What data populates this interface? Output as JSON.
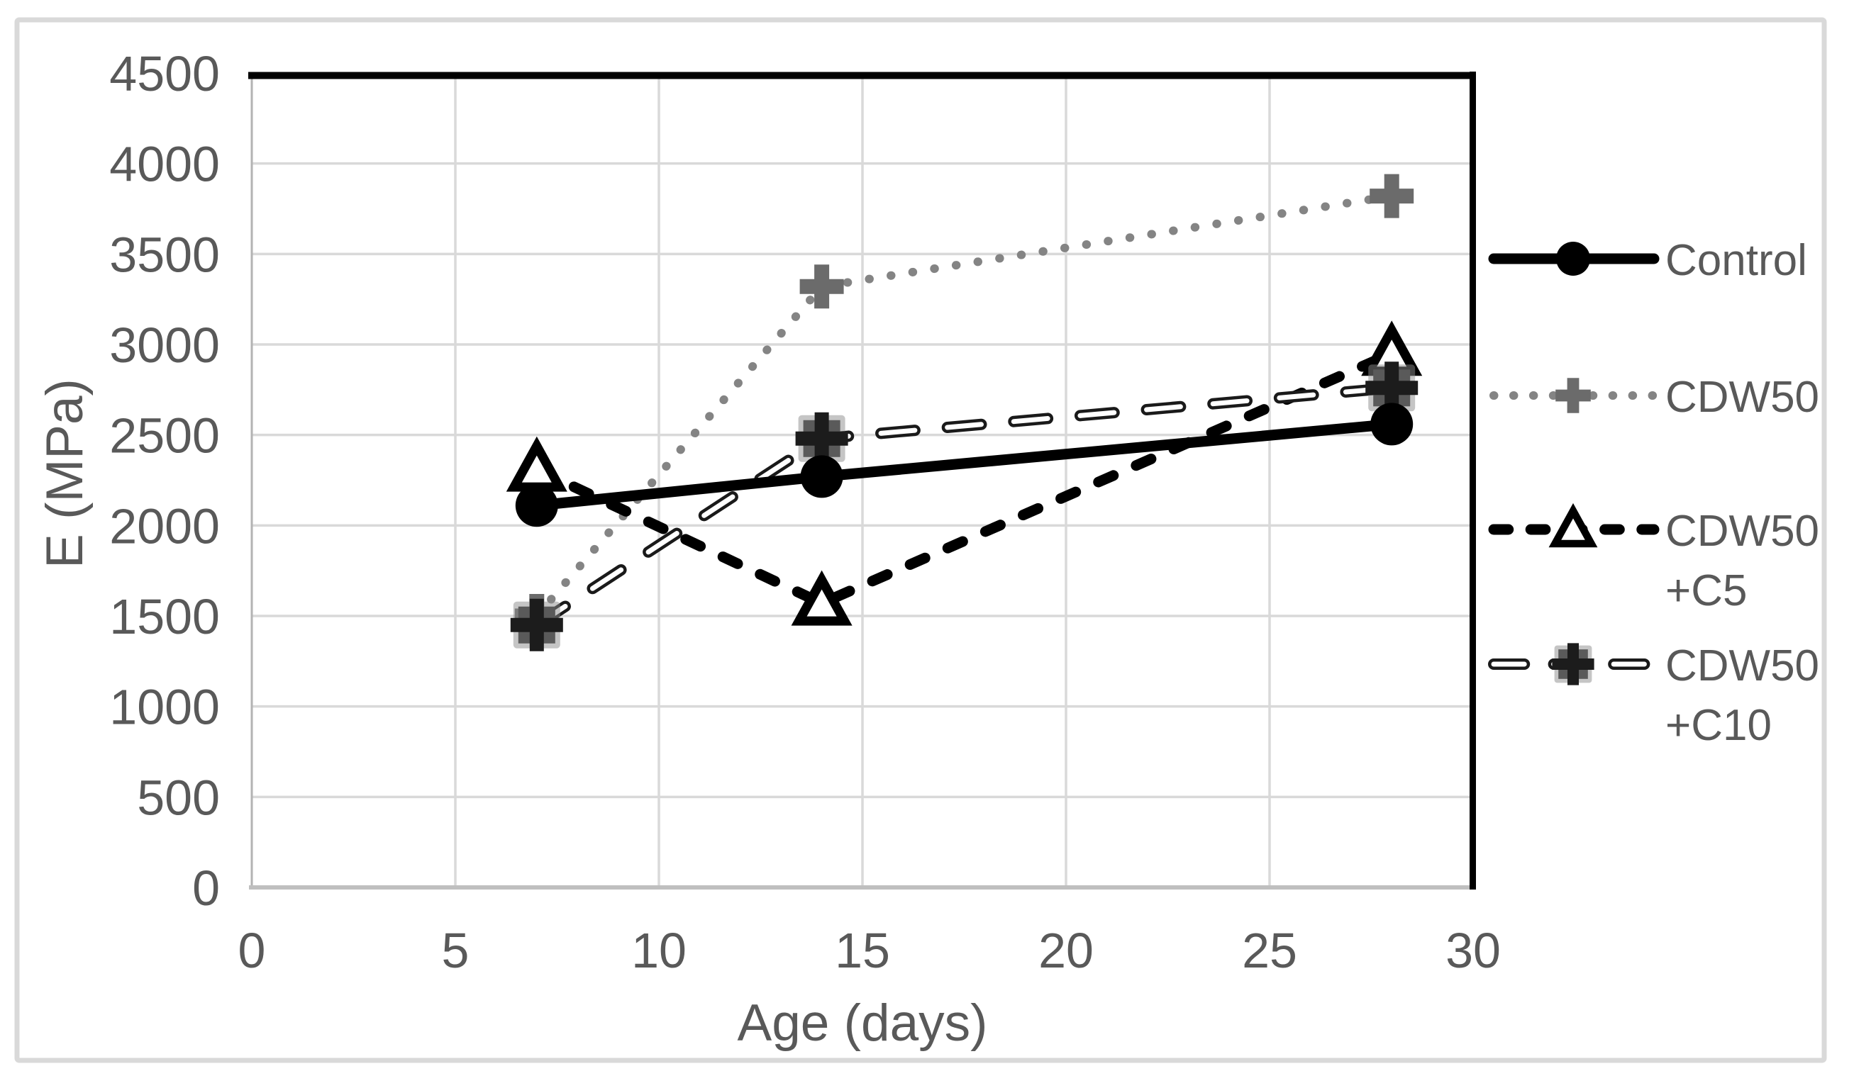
{
  "figure": {
    "background": "#ffffff",
    "frame_color": "#d9d9d9",
    "grid_color": "#d9d9d9",
    "axis_color": "#bfbfbf",
    "left_axis_color": "#b3b3b3",
    "plot_border_color": "#000000",
    "label_color": "#595959"
  },
  "chart_data": {
    "type": "line",
    "title": "",
    "xlabel": "Age (days)",
    "ylabel": "E (MPa)",
    "xlim": [
      0,
      30
    ],
    "ylim": [
      0,
      4500
    ],
    "x_ticks": [
      0,
      5,
      10,
      15,
      20,
      25,
      30
    ],
    "y_ticks": [
      0,
      500,
      1000,
      1500,
      2000,
      2500,
      3000,
      3500,
      4000,
      4500
    ],
    "grid": true,
    "legend_position": "right-outside",
    "x_values": [
      7,
      14,
      28
    ],
    "series": [
      {
        "name": "Control",
        "label_lines": [
          "Control"
        ],
        "values": [
          2110,
          2270,
          2560
        ],
        "line_style": "solid",
        "marker": "filled-circle",
        "line_color": "#000000",
        "marker_color": "#000000"
      },
      {
        "name": "CDW50",
        "label_lines": [
          "CDW50"
        ],
        "values": [
          1500,
          3320,
          3820
        ],
        "line_style": "dotted",
        "marker": "plus",
        "line_color": "#848484",
        "marker_color": "#6b6b6b"
      },
      {
        "name": "CDW50+C5",
        "label_lines": [
          "CDW50",
          "+C5"
        ],
        "values": [
          2310,
          1570,
          2950
        ],
        "line_style": "dashed",
        "marker": "open-triangle",
        "line_color": "#000000",
        "marker_color": "#000000",
        "marker_fill": "#ffffff"
      },
      {
        "name": "CDW50+C10",
        "label_lines": [
          "CDW50",
          "+C10"
        ],
        "values": [
          1450,
          2480,
          2760
        ],
        "line_style": "outlined-dash",
        "marker": "square-plus",
        "line_color": "#1a1a1a",
        "line_fill": "#ffffff",
        "marker_color": "#5a5a5a",
        "marker_plus_color": "#1c1c1c",
        "marker_halo": "rgba(140,140,140,0.5)"
      }
    ],
    "draw_order": [
      1,
      2,
      3,
      0
    ]
  }
}
